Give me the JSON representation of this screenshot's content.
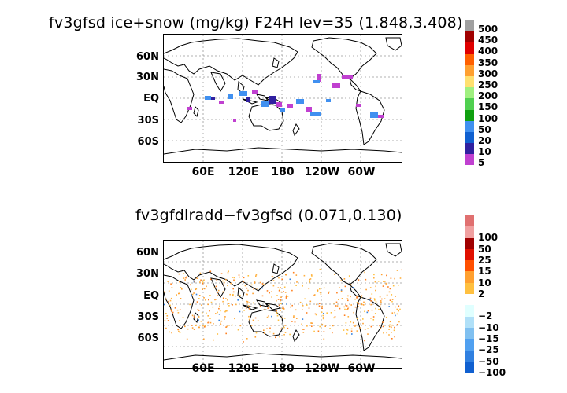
{
  "panels": [
    {
      "title": "fv3gfsd ice+snow (mg/kg) F24H lev=35 (1.848,3.408)",
      "lat_labels": [
        "60N",
        "30N",
        "EQ",
        "30S",
        "60S"
      ],
      "lon_labels": [
        "60E",
        "120E",
        "180",
        "120W",
        "60W"
      ],
      "colorbar": [
        {
          "label": "500",
          "color": "#a0a0a0"
        },
        {
          "label": "450",
          "color": "#a00000"
        },
        {
          "label": "400",
          "color": "#e00000"
        },
        {
          "label": "350",
          "color": "#ff6000"
        },
        {
          "label": "300",
          "color": "#ffa030"
        },
        {
          "label": "250",
          "color": "#ffe070"
        },
        {
          "label": "200",
          "color": "#a0f080"
        },
        {
          "label": "150",
          "color": "#50d050"
        },
        {
          "label": "100",
          "color": "#10a010"
        },
        {
          "label": "50",
          "color": "#4090f0"
        },
        {
          "label": "20",
          "color": "#1060d0"
        },
        {
          "label": "10",
          "color": "#3020a0"
        },
        {
          "label": "5",
          "color": "#c040d0"
        }
      ]
    },
    {
      "title": "fv3gfdlradd−fv3gfsd (0.071,0.130)",
      "lat_labels": [
        "60N",
        "30N",
        "EQ",
        "30S",
        "60S"
      ],
      "lon_labels": [
        "60E",
        "120E",
        "180",
        "120W",
        "60W"
      ],
      "colorbar": [
        {
          "label": "",
          "color": "#e07070"
        },
        {
          "label": "100",
          "color": "#f0a0a0"
        },
        {
          "label": "50",
          "color": "#a00000"
        },
        {
          "label": "25",
          "color": "#e01000"
        },
        {
          "label": "15",
          "color": "#ff5000"
        },
        {
          "label": "10",
          "color": "#ffa030"
        },
        {
          "label": "2",
          "color": "#ffc040"
        },
        {
          "label": "",
          "color": "#ffffff"
        },
        {
          "label": "−2",
          "color": "#e0ffff"
        },
        {
          "label": "−10",
          "color": "#b0e0f8"
        },
        {
          "label": "−15",
          "color": "#80c0f0"
        },
        {
          "label": "−25",
          "color": "#50a0f0"
        },
        {
          "label": "−50",
          "color": "#3080e0"
        },
        {
          "label": "−100",
          "color": "#1060d0"
        }
      ]
    }
  ]
}
